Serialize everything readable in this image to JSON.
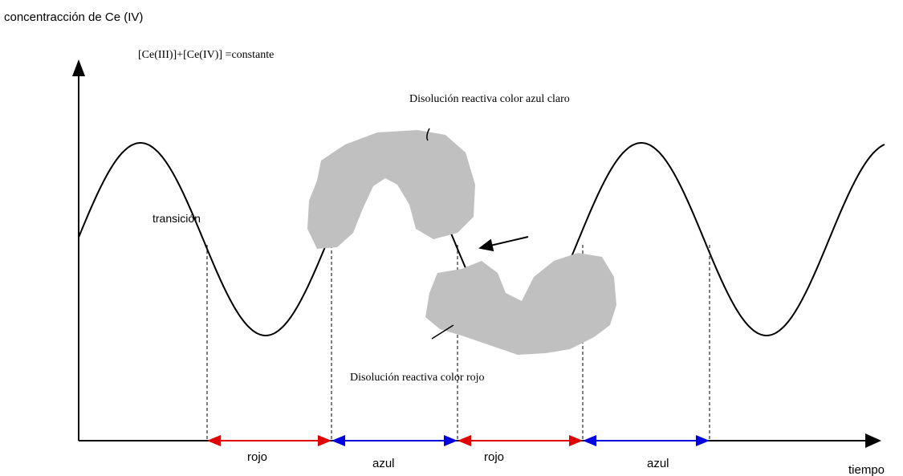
{
  "axes": {
    "y_label": "concentracción de Ce (IV)",
    "x_label": "tiempo"
  },
  "equation": "[Ce(III)]+[Ce(IV)] =constante",
  "annotations": {
    "blue_solution": "Disolución reactiva color azul claro",
    "red_solution": "Disolución reactiva color rojo",
    "transition": "transición"
  },
  "intervals": [
    "rojo",
    "azul",
    "rojo",
    "azul"
  ]
}
